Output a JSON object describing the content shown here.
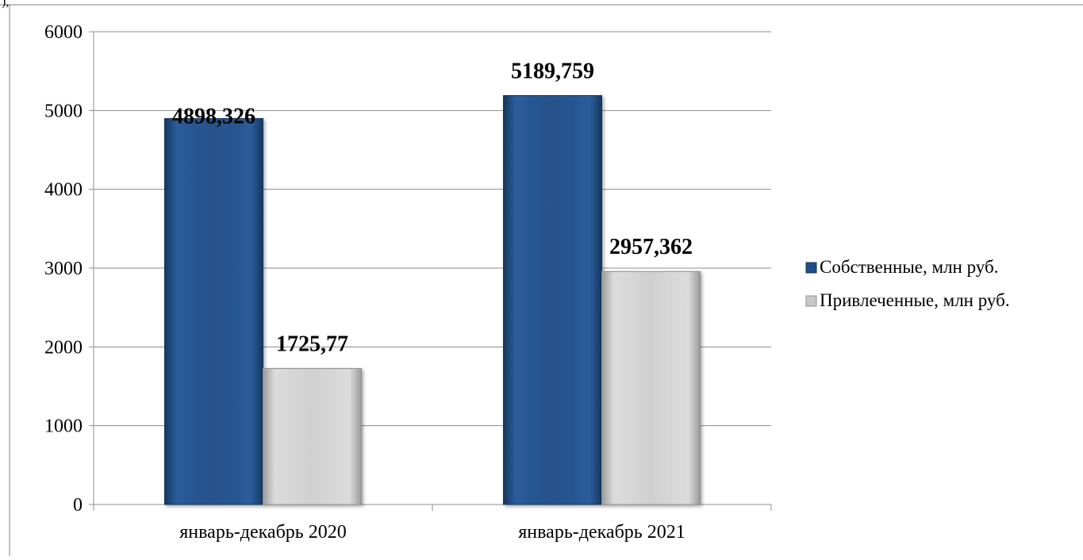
{
  "corner_text": "),",
  "chart_data": {
    "type": "bar",
    "title": "",
    "xlabel": "",
    "ylabel": "",
    "categories": [
      "январь-декабрь 2020",
      "январь-декабрь 2021"
    ],
    "series": [
      {
        "name": "Собственные, млн руб.",
        "values": [
          4898.326,
          5189.759
        ],
        "labels": [
          "4898,326",
          "5189,759"
        ],
        "color": "#1f4e8c"
      },
      {
        "name": "Привлеченные, млн руб.",
        "values": [
          1725.77,
          2957.362
        ],
        "labels": [
          "1725,77",
          "2957,362"
        ],
        "color": "#c8c8c8"
      }
    ],
    "ylim": [
      0,
      6000
    ],
    "yticks": [
      0,
      1000,
      2000,
      3000,
      4000,
      5000,
      6000
    ],
    "ytick_labels": [
      "0",
      "1000",
      "2000",
      "3000",
      "4000",
      "5000",
      "6000"
    ],
    "grid": true,
    "legend_position": "right"
  }
}
